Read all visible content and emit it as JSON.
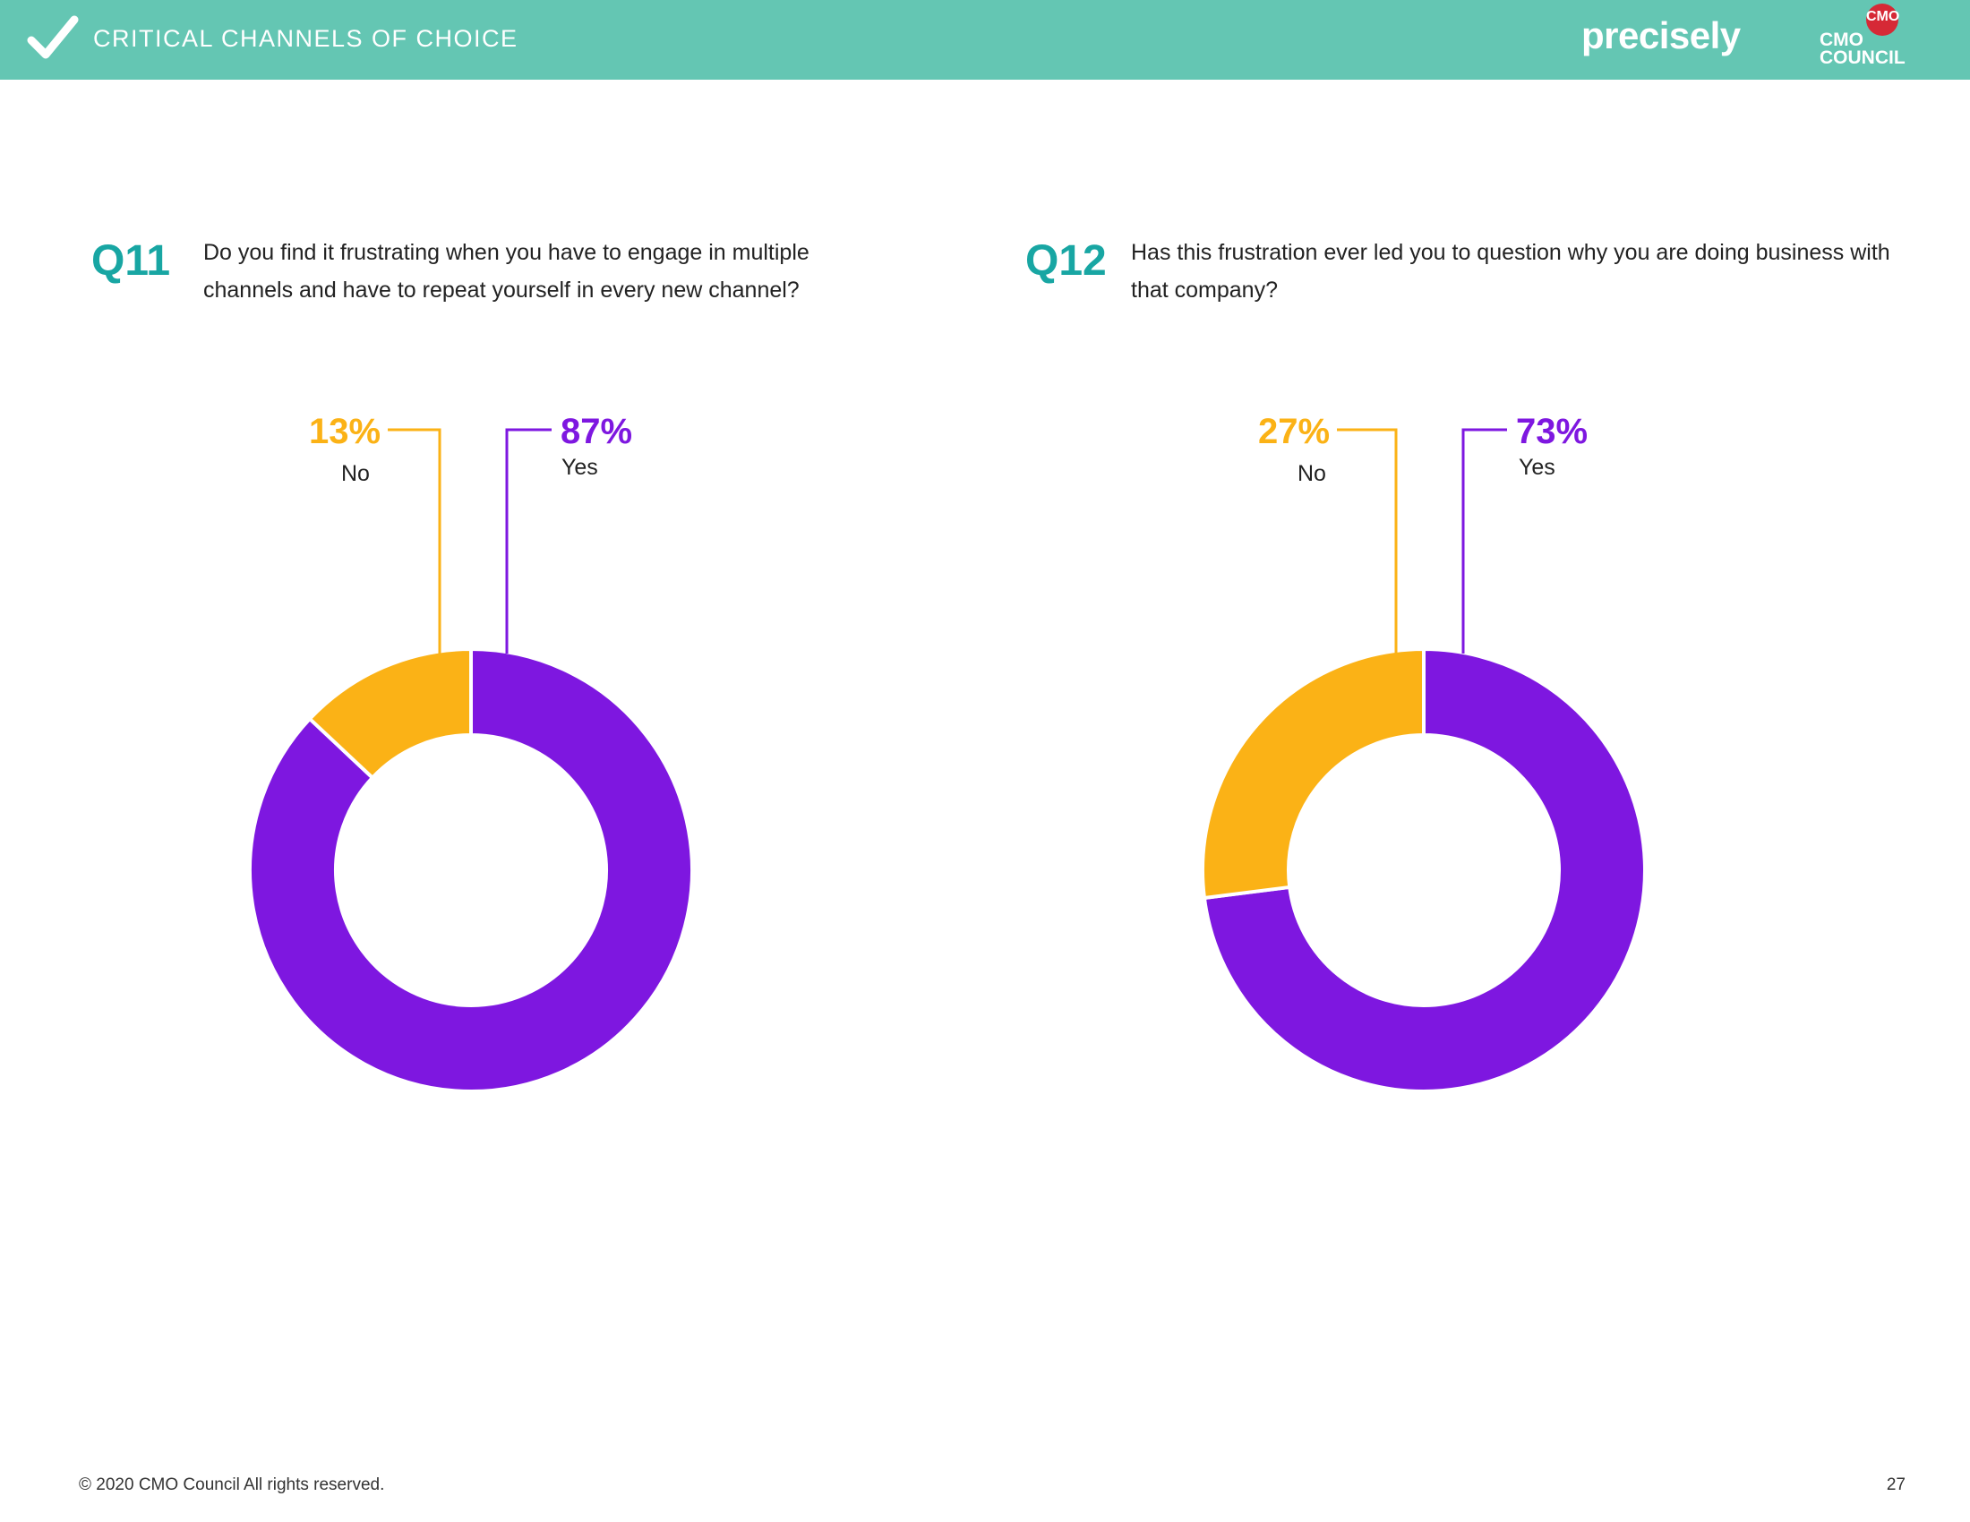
{
  "header": {
    "section_title": "CRITICAL CHANNELS OF CHOICE",
    "brand": "precisely",
    "partner_logo": {
      "seal": "CMO",
      "line1": "CMO",
      "line2": "COUNCIL"
    },
    "colors": {
      "band": "#64c6b3",
      "seal": "#d62936"
    }
  },
  "questions": [
    {
      "number": "Q11",
      "text": "Do you find it frustrating when you have to engage in multiple channels and have to repeat yourself in every new channel?"
    },
    {
      "number": "Q12",
      "text": "Has this frustration ever led you to question why you are doing business with that company?"
    }
  ],
  "chart_data": [
    {
      "type": "pie",
      "donut": true,
      "title": "",
      "categories": [
        "No",
        "Yes"
      ],
      "values": [
        13,
        87
      ],
      "labels": [
        "13%",
        "87%"
      ],
      "colors": [
        "#fbb216",
        "#7e17e0"
      ]
    },
    {
      "type": "pie",
      "donut": true,
      "title": "",
      "categories": [
        "No",
        "Yes"
      ],
      "values": [
        27,
        73
      ],
      "labels": [
        "27%",
        "73%"
      ],
      "colors": [
        "#fbb216",
        "#7e17e0"
      ]
    }
  ],
  "footer": {
    "copyright": "© 2020 CMO Council  All rights reserved.",
    "page_number": "27"
  }
}
